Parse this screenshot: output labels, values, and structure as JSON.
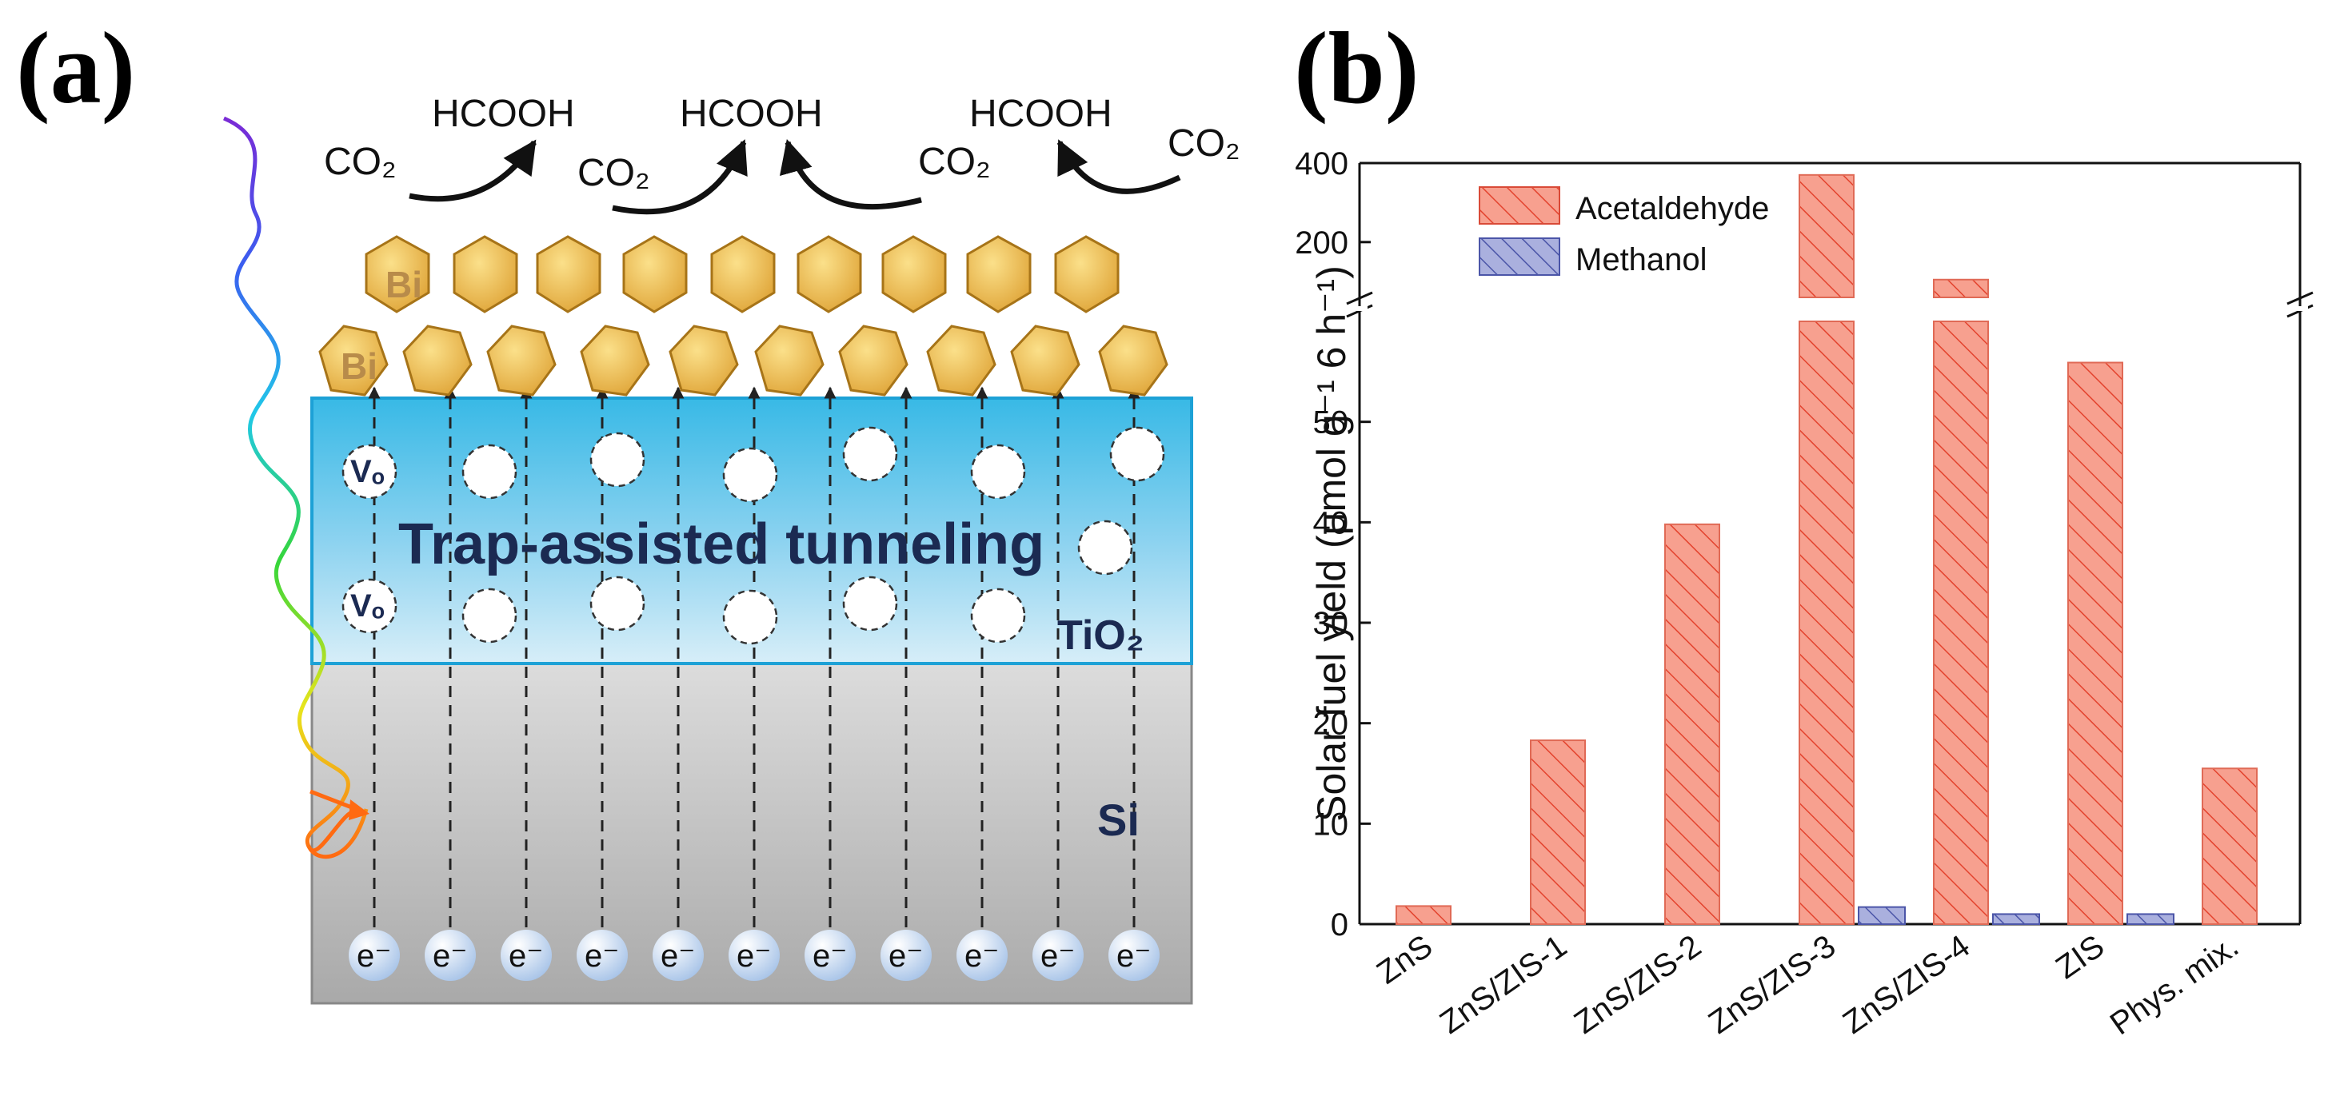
{
  "panel_a": {
    "label": "(a)",
    "product_label": "HCOOH",
    "reactant_label": "CO₂",
    "catalyst_label": "Bi",
    "tunneling_label": "Trap-assisted tunneling",
    "oxide_label": "TiO₂",
    "substrate_label": "Si",
    "vacancy_label": "Vₒ",
    "electron_label": "e⁻"
  },
  "panel_b": {
    "label": "(b)"
  },
  "chart_data": {
    "type": "bar",
    "title": "",
    "xlabel": "",
    "ylabel": "Solar fuel yield (μmol g⁻¹ 6 h⁻¹)",
    "categories": [
      "ZnS",
      "ZnS/ZIS-1",
      "ZnS/ZIS-2",
      "ZnS/ZIS-3",
      "ZnS/ZIS-4",
      "ZIS",
      "Phys. mix."
    ],
    "series": [
      {
        "name": "Acetaldehyde",
        "color": "#f47a66",
        "values": [
          1.8,
          18.3,
          39.8,
          370,
          105,
          55.9,
          15.5
        ]
      },
      {
        "name": "Methanol",
        "color": "#8a92cc",
        "values": [
          0,
          0,
          0,
          1.7,
          1.0,
          1.0,
          0
        ]
      }
    ],
    "ylim_lower": [
      0,
      60
    ],
    "ylim_upper": [
      60,
      400
    ],
    "lower_ticks": [
      "0",
      "10",
      "20",
      "30",
      "40",
      "50"
    ],
    "upper_ticks": [
      "200",
      "400"
    ],
    "axis_break": "between 60 and 100",
    "legend_position": "top-left",
    "grid": false
  }
}
